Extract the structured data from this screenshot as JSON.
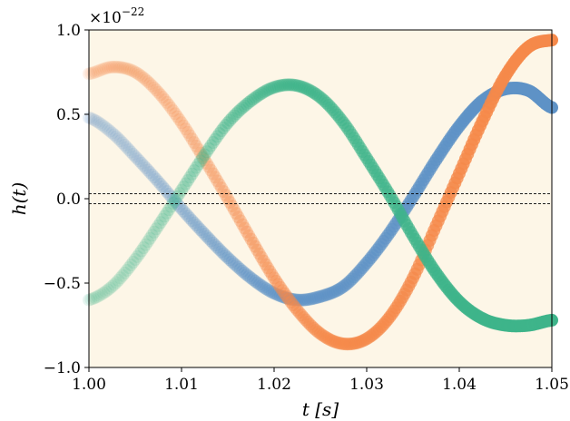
{
  "chart_data": {
    "type": "line",
    "xlabel": "t [s]",
    "ylabel": "h(t)",
    "xlim": [
      1.0,
      1.05
    ],
    "ylim": [
      -1.0,
      1.0
    ],
    "x_ticks": [
      "1.00",
      "1.01",
      "1.02",
      "1.03",
      "1.04",
      "1.05"
    ],
    "y_ticks": [
      "−1.0",
      "−0.5",
      "0.0",
      "0.5",
      "1.0"
    ],
    "y_scale_label": "×10",
    "y_scale_exponent": "−22",
    "background_color": "#fdf6e7",
    "grid": false,
    "legend": "none",
    "reference_lines": [
      0.03,
      -0.03
    ],
    "series": [
      {
        "color": "#5e92c6",
        "fade_in": true,
        "x": [
          1.0,
          1.0025,
          1.005,
          1.0075,
          1.01,
          1.0125,
          1.015,
          1.0175,
          1.02,
          1.0225,
          1.025,
          1.0275,
          1.03,
          1.0325,
          1.035,
          1.0375,
          1.04,
          1.0425,
          1.045,
          1.0475,
          1.05
        ],
        "y": [
          0.48,
          0.39,
          0.25,
          0.1,
          -0.06,
          -0.21,
          -0.35,
          -0.47,
          -0.56,
          -0.6,
          -0.58,
          -0.52,
          -0.38,
          -0.2,
          0.01,
          0.23,
          0.43,
          0.58,
          0.65,
          0.64,
          0.54
        ]
      },
      {
        "color": "#f5894a",
        "fade_in": true,
        "x": [
          1.0,
          1.0025,
          1.005,
          1.0075,
          1.01,
          1.0125,
          1.015,
          1.0175,
          1.02,
          1.0225,
          1.025,
          1.0275,
          1.03,
          1.0325,
          1.035,
          1.0375,
          1.04,
          1.0425,
          1.045,
          1.0475,
          1.05
        ],
        "y": [
          0.74,
          0.78,
          0.75,
          0.63,
          0.45,
          0.23,
          0.0,
          -0.24,
          -0.47,
          -0.66,
          -0.8,
          -0.86,
          -0.83,
          -0.7,
          -0.47,
          -0.16,
          0.15,
          0.46,
          0.73,
          0.9,
          0.94
        ]
      },
      {
        "color": "#3eb48a",
        "fade_in": true,
        "x": [
          1.0,
          1.0025,
          1.005,
          1.0075,
          1.01,
          1.0125,
          1.015,
          1.0175,
          1.02,
          1.0225,
          1.025,
          1.0275,
          1.03,
          1.0325,
          1.035,
          1.0375,
          1.04,
          1.0425,
          1.045,
          1.0475,
          1.05
        ],
        "y": [
          -0.6,
          -0.52,
          -0.36,
          -0.16,
          0.05,
          0.26,
          0.45,
          0.58,
          0.66,
          0.67,
          0.6,
          0.45,
          0.24,
          0.02,
          -0.22,
          -0.44,
          -0.61,
          -0.71,
          -0.75,
          -0.75,
          -0.72
        ]
      }
    ]
  }
}
